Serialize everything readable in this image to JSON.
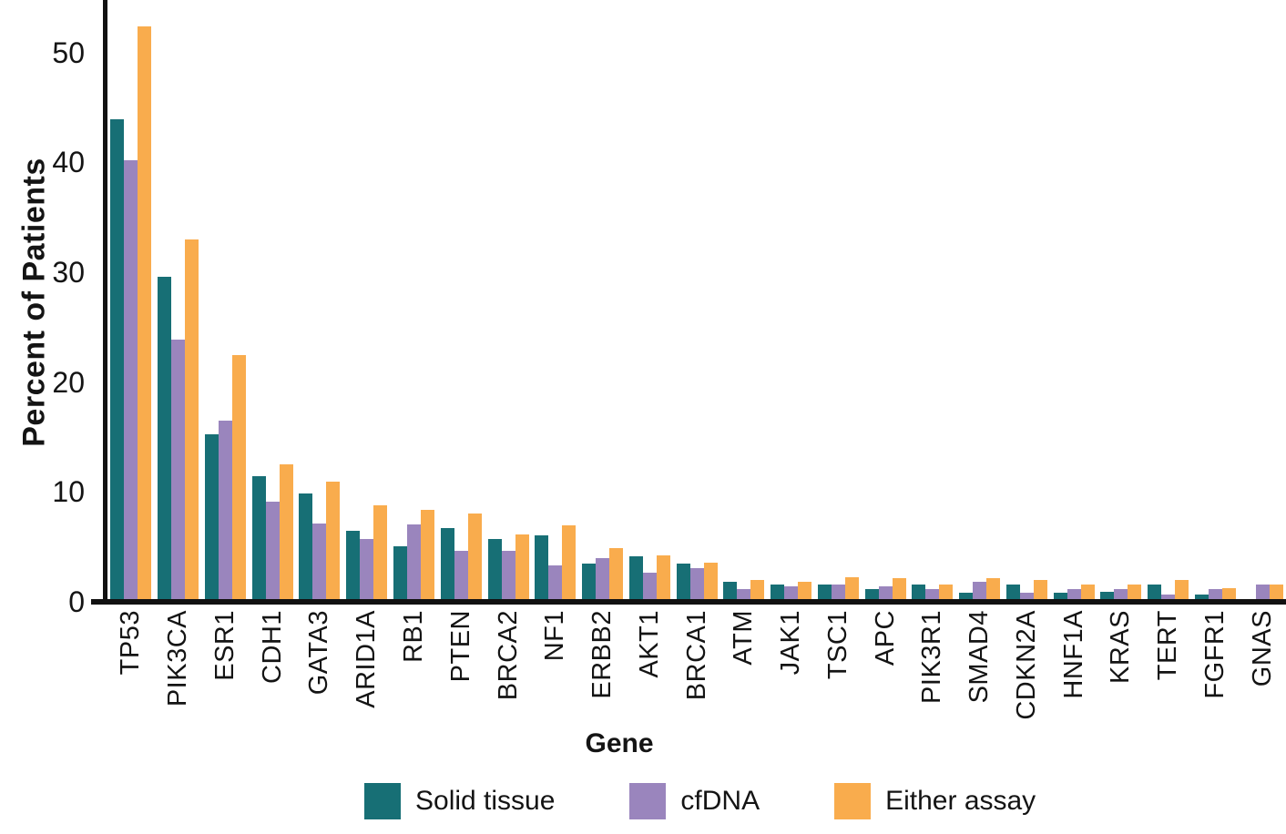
{
  "chart_data": {
    "type": "bar",
    "title": "",
    "xlabel": "Gene",
    "ylabel": "Percent of Patients",
    "ylim": [
      0,
      54
    ],
    "yticks": [
      0,
      10,
      20,
      30,
      40,
      50
    ],
    "grid": false,
    "legend_position": "bottom",
    "axis_color": "#111111",
    "categories": [
      "TP53",
      "PIK3CA",
      "ESR1",
      "CDH1",
      "GATA3",
      "ARID1A",
      "RB1",
      "PTEN",
      "BRCA2",
      "NF1",
      "ERBB2",
      "AKT1",
      "BRCA1",
      "ATM",
      "JAK1",
      "TSC1",
      "APC",
      "PIK3R1",
      "SMAD4",
      "CDKN2A",
      "HNF1A",
      "KRAS",
      "TERT",
      "FGFR1",
      "GNAS"
    ],
    "series": [
      {
        "name": "Solid tissue",
        "color": "#176F75",
        "values": [
          43.7,
          29.3,
          15.0,
          11.2,
          9.6,
          6.2,
          4.8,
          6.5,
          5.5,
          5.8,
          3.2,
          3.9,
          3.2,
          1.6,
          1.3,
          1.3,
          0.9,
          1.3,
          0.6,
          1.3,
          0.6,
          0.7,
          1.3,
          0.4,
          0
        ]
      },
      {
        "name": "cfDNA",
        "color": "#9A85BD",
        "values": [
          39.9,
          23.6,
          16.2,
          8.9,
          6.9,
          5.5,
          6.8,
          4.4,
          4.4,
          3.1,
          3.7,
          2.4,
          2.8,
          0.9,
          1.2,
          1.3,
          1.2,
          0.9,
          1.6,
          0.6,
          0.9,
          0.9,
          0.4,
          0.9,
          1.3
        ]
      },
      {
        "name": "Either assay",
        "color": "#F9AC4D",
        "values": [
          52.1,
          32.7,
          22.2,
          12.3,
          10.7,
          8.5,
          8.1,
          7.8,
          5.9,
          6.7,
          4.6,
          4.0,
          3.3,
          1.7,
          1.6,
          2.0,
          1.9,
          1.3,
          1.9,
          1.7,
          1.3,
          1.3,
          1.7,
          1.0,
          1.3
        ]
      }
    ]
  }
}
